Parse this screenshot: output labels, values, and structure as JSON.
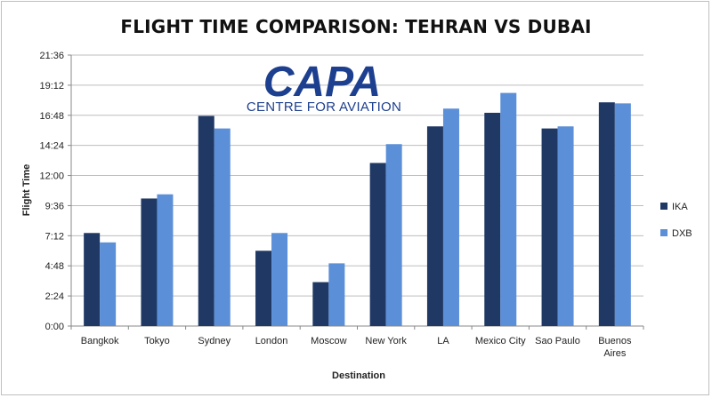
{
  "chart_data": {
    "type": "bar",
    "title": "FLIGHT TIME COMPARISON: TEHRAN VS DUBAI",
    "xlabel": "Destination",
    "ylabel": "Flight Time",
    "categories": [
      "Bangkok",
      "Tokyo",
      "Sydney",
      "London",
      "Moscow",
      "New York",
      "LA",
      "Mexico City",
      "Sao Paulo",
      "Buenos Aires"
    ],
    "y_ticks": [
      "0:00",
      "2:24",
      "4:48",
      "7:12",
      "9:36",
      "12:00",
      "14:24",
      "16:48",
      "19:12",
      "21:36"
    ],
    "y_unit": "minutes",
    "ylim": [
      0,
      1296
    ],
    "grid": true,
    "legend_position": "right",
    "series": [
      {
        "name": "IKA",
        "color": "#1f3864",
        "values": [
          445,
          610,
          1005,
          360,
          210,
          780,
          955,
          1020,
          945,
          1070
        ]
      },
      {
        "name": "DXB",
        "color": "#5b8fd8",
        "values": [
          400,
          630,
          945,
          445,
          300,
          870,
          1040,
          1115,
          955,
          1065
        ]
      }
    ]
  },
  "logo": {
    "main": "CAPA",
    "sub": "CENTRE FOR AVIATION"
  }
}
